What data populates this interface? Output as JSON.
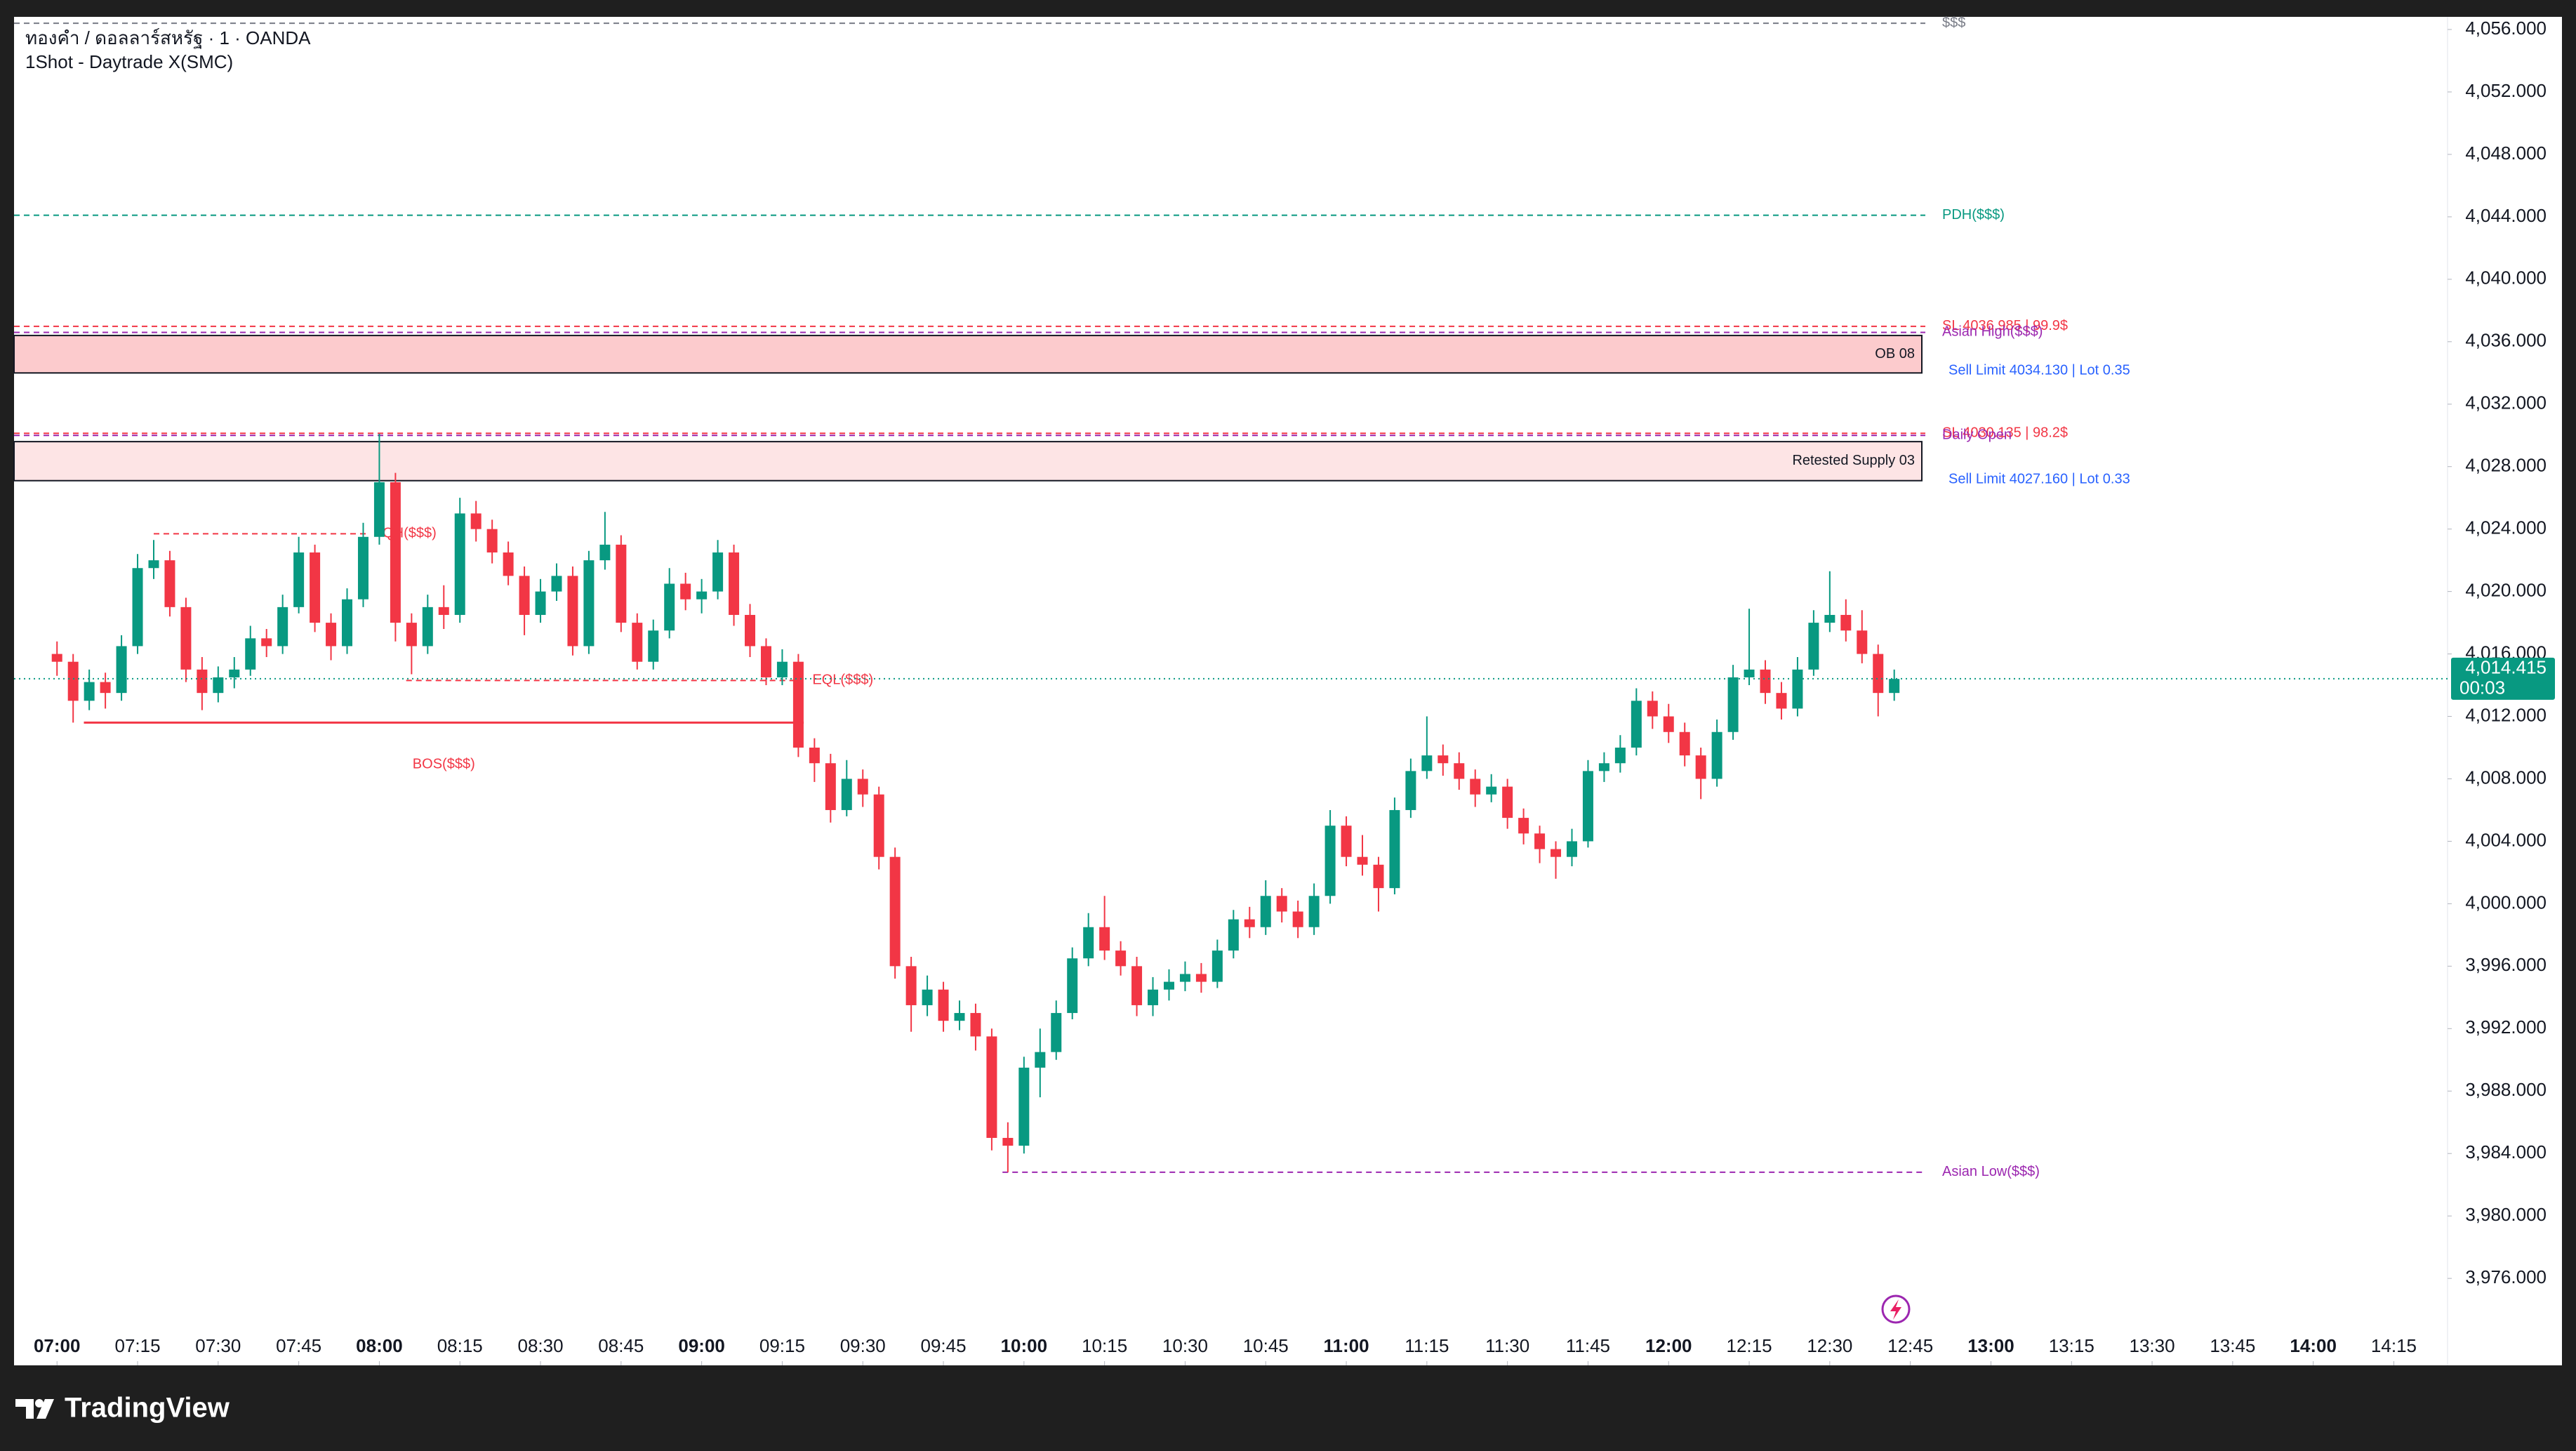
{
  "header": {
    "symbol": "ทองคำ / ดอลลาร์สหรัฐ · 1 · OANDA",
    "indicator": "1Shot - Daytrade X(SMC)"
  },
  "brand": "TradingView",
  "chart_data": {
    "type": "candlestick",
    "up_color": "#089981",
    "down_color": "#f23645",
    "x": [
      "07:00",
      "07:03",
      "07:06",
      "07:09",
      "07:12",
      "07:15",
      "07:18",
      "07:21",
      "07:24",
      "07:27",
      "07:30",
      "07:33",
      "07:36",
      "07:39",
      "07:42",
      "07:45",
      "07:48",
      "07:51",
      "07:54",
      "07:57",
      "08:00",
      "08:03",
      "08:06",
      "08:09",
      "08:12",
      "08:15",
      "08:18",
      "08:21",
      "08:24",
      "08:27",
      "08:30",
      "08:33",
      "08:36",
      "08:39",
      "08:42",
      "08:45",
      "08:48",
      "08:51",
      "08:54",
      "08:57",
      "09:00",
      "09:03",
      "09:06",
      "09:09",
      "09:12",
      "09:15",
      "09:18",
      "09:21",
      "09:24",
      "09:27",
      "09:30",
      "09:33",
      "09:36",
      "09:39",
      "09:42",
      "09:45",
      "09:48",
      "09:51",
      "09:54",
      "09:57",
      "10:00",
      "10:03",
      "10:06",
      "10:09",
      "10:12",
      "10:15",
      "10:18",
      "10:21",
      "10:24",
      "10:27",
      "10:30",
      "10:33",
      "10:36",
      "10:39",
      "10:42",
      "10:45",
      "10:48",
      "10:51",
      "10:54",
      "10:57",
      "11:00",
      "11:03",
      "11:06",
      "11:09",
      "11:12",
      "11:15",
      "11:18",
      "11:21",
      "11:24",
      "11:27",
      "11:30",
      "11:33",
      "11:36",
      "11:39",
      "11:42",
      "11:45",
      "11:48",
      "11:51",
      "11:54",
      "11:57",
      "12:00",
      "12:03",
      "12:06",
      "12:09",
      "12:12",
      "12:15",
      "12:18",
      "12:21",
      "12:24",
      "12:27",
      "12:30",
      "12:33",
      "12:36",
      "12:39",
      "12:42"
    ],
    "open": [
      4016.0,
      4015.5,
      4013.0,
      4014.2,
      4013.5,
      4016.5,
      4021.5,
      4022.0,
      4019.0,
      4015.0,
      4013.5,
      4014.5,
      4015.0,
      4017.0,
      4016.5,
      4019.0,
      4022.5,
      4018.0,
      4016.5,
      4019.5,
      4023.5,
      4027.0,
      4018.0,
      4016.5,
      4019.0,
      4018.5,
      4025.0,
      4024.0,
      4022.5,
      4021.0,
      4018.5,
      4020.0,
      4021.0,
      4016.5,
      4022.0,
      4023.0,
      4018.0,
      4015.5,
      4017.5,
      4020.5,
      4019.5,
      4020.0,
      4022.5,
      4018.5,
      4016.5,
      4014.5,
      4015.5,
      4010.0,
      4009.0,
      4006.0,
      4008.0,
      4007.0,
      4003.0,
      3996.0,
      3993.5,
      3994.5,
      3992.5,
      3993.0,
      3991.5,
      3985.0,
      3984.5,
      3989.5,
      3990.5,
      3993.0,
      3996.5,
      3998.5,
      3997.0,
      3996.0,
      3993.5,
      3994.5,
      3995.0,
      3995.5,
      3995.0,
      3997.0,
      3999.0,
      3998.5,
      4000.5,
      3999.5,
      3998.5,
      4000.5,
      4005.0,
      4003.0,
      4002.5,
      4001.0,
      4006.0,
      4008.5,
      4009.5,
      4009.0,
      4008.0,
      4007.0,
      4007.5,
      4005.5,
      4004.5,
      4003.5,
      4003.0,
      4004.0,
      4008.5,
      4009.0,
      4010.0,
      4013.0,
      4012.0,
      4011.0,
      4009.5,
      4008.0,
      4011.0,
      4014.5,
      4015.0,
      4013.5,
      4012.5,
      4015.0,
      4018.0,
      4018.5,
      4017.5,
      4016.0,
      4013.5
    ],
    "high": [
      4016.8,
      4016.0,
      4015.0,
      4014.8,
      4017.2,
      4022.4,
      4023.3,
      4022.6,
      4019.6,
      4015.8,
      4015.2,
      4015.8,
      4017.8,
      4017.6,
      4019.8,
      4023.5,
      4023.0,
      4018.6,
      4020.2,
      4024.4,
      4030.1,
      4027.6,
      4018.6,
      4019.8,
      4020.4,
      4026.0,
      4025.8,
      4024.6,
      4023.2,
      4021.6,
      4020.8,
      4021.8,
      4021.6,
      4022.6,
      4025.1,
      4023.6,
      4018.6,
      4018.2,
      4021.5,
      4021.2,
      4020.8,
      4023.3,
      4023.0,
      4019.2,
      4017.0,
      4016.3,
      4016.0,
      4010.6,
      4009.6,
      4009.2,
      4008.6,
      4007.5,
      4003.6,
      3996.6,
      3995.4,
      3995.0,
      3993.8,
      3993.6,
      3992.0,
      3986.0,
      3990.2,
      3992.0,
      3993.8,
      3997.2,
      3999.4,
      4000.5,
      3997.6,
      3996.6,
      3995.3,
      3995.8,
      3996.3,
      3996.2,
      3997.7,
      3999.6,
      3999.8,
      4001.5,
      4001.0,
      4000.2,
      4001.3,
      4006.0,
      4005.6,
      4004.4,
      4003.0,
      4006.8,
      4009.3,
      4012.0,
      4010.2,
      4009.7,
      4008.6,
      4008.3,
      4008.0,
      4006.1,
      4005.0,
      4004.0,
      4004.8,
      4009.2,
      4009.7,
      4010.8,
      4013.8,
      4013.6,
      4012.8,
      4011.6,
      4010.0,
      4011.8,
      4015.3,
      4018.9,
      4015.6,
      4014.2,
      4015.8,
      4018.8,
      4021.3,
      4019.5,
      4018.8,
      4016.6,
      4015.0
    ],
    "low": [
      4014.6,
      4011.6,
      4012.4,
      4012.5,
      4013.0,
      4016.0,
      4020.8,
      4018.4,
      4014.2,
      4012.4,
      4012.9,
      4013.8,
      4014.6,
      4015.8,
      4016.0,
      4018.6,
      4017.4,
      4015.6,
      4016.0,
      4019.0,
      4023.0,
      4016.8,
      4014.7,
      4016.0,
      4017.6,
      4018.0,
      4023.2,
      4021.8,
      4020.4,
      4017.2,
      4018.0,
      4019.4,
      4015.9,
      4016.0,
      4021.4,
      4017.4,
      4015.0,
      4015.0,
      4017.0,
      4018.8,
      4018.6,
      4019.5,
      4017.8,
      4015.8,
      4014.0,
      4014.0,
      4009.4,
      4007.8,
      4005.2,
      4005.6,
      4006.2,
      4002.2,
      3995.2,
      3991.8,
      3992.8,
      3991.8,
      3991.9,
      3990.6,
      3984.2,
      3982.8,
      3984.0,
      3987.6,
      3990.0,
      3992.6,
      3996.0,
      3996.4,
      3995.4,
      3992.8,
      3992.8,
      3993.8,
      3994.4,
      3994.3,
      3994.6,
      3996.5,
      3997.8,
      3998.0,
      3998.8,
      3997.8,
      3998.0,
      4000.0,
      4002.4,
      4001.8,
      3999.5,
      4000.6,
      4005.5,
      4008.0,
      4008.2,
      4007.3,
      4006.2,
      4006.5,
      4004.8,
      4003.8,
      4002.6,
      4001.6,
      4002.4,
      4003.6,
      4007.8,
      4008.4,
      4009.5,
      4011.2,
      4010.3,
      4008.8,
      4006.7,
      4007.5,
      4010.5,
      4014.0,
      4012.8,
      4011.8,
      4012.0,
      4014.6,
      4017.4,
      4016.8,
      4015.4,
      4012.0,
      4013.0
    ],
    "close": [
      4015.5,
      4013.0,
      4014.2,
      4013.5,
      4016.5,
      4021.5,
      4022.0,
      4019.0,
      4015.0,
      4013.5,
      4014.5,
      4015.0,
      4017.0,
      4016.5,
      4019.0,
      4022.5,
      4018.0,
      4016.5,
      4019.5,
      4023.5,
      4027.0,
      4018.0,
      4016.5,
      4019.0,
      4018.5,
      4025.0,
      4024.0,
      4022.5,
      4021.0,
      4018.5,
      4020.0,
      4021.0,
      4016.5,
      4022.0,
      4023.0,
      4018.0,
      4015.5,
      4017.5,
      4020.5,
      4019.5,
      4020.0,
      4022.5,
      4018.5,
      4016.5,
      4014.5,
      4015.5,
      4010.0,
      4009.0,
      4006.0,
      4008.0,
      4007.0,
      4003.0,
      3996.0,
      3993.5,
      3994.5,
      3992.5,
      3993.0,
      3991.5,
      3985.0,
      3984.5,
      3989.5,
      3990.5,
      3993.0,
      3996.5,
      3998.5,
      3997.0,
      3996.0,
      3993.5,
      3994.5,
      3995.0,
      3995.5,
      3995.0,
      3997.0,
      3999.0,
      3998.5,
      4000.5,
      3999.5,
      3998.5,
      4000.5,
      4005.0,
      4003.0,
      4002.5,
      4001.0,
      4006.0,
      4008.5,
      4009.5,
      4009.0,
      4008.0,
      4007.0,
      4007.5,
      4005.5,
      4004.5,
      4003.5,
      4003.0,
      4004.0,
      4008.5,
      4009.0,
      4010.0,
      4013.0,
      4012.0,
      4011.0,
      4009.5,
      4008.0,
      4011.0,
      4014.5,
      4015.0,
      4013.5,
      4012.5,
      4015.0,
      4018.0,
      4018.5,
      4017.5,
      4016.0,
      4013.5,
      4014.4
    ],
    "xlim": [
      "06:52",
      "14:25"
    ],
    "xticks": [
      "07:00",
      "07:15",
      "07:30",
      "07:45",
      "08:00",
      "08:15",
      "08:30",
      "08:45",
      "09:00",
      "09:15",
      "09:30",
      "09:45",
      "10:00",
      "10:15",
      "10:30",
      "10:45",
      "11:00",
      "11:15",
      "11:30",
      "11:45",
      "12:00",
      "12:15",
      "12:30",
      "12:45",
      "13:00",
      "13:15",
      "13:30",
      "13:45",
      "14:00",
      "14:15"
    ],
    "ylim": [
      3970.43,
      4056.81
    ],
    "yticks": [
      {
        "value": 4056,
        "label": "4,056.000"
      },
      {
        "value": 4052,
        "label": "4,052.000"
      },
      {
        "value": 4048,
        "label": "4,048.000"
      },
      {
        "value": 4044,
        "label": "4,044.000"
      },
      {
        "value": 4040,
        "label": "4,040.000"
      },
      {
        "value": 4036,
        "label": "4,036.000"
      },
      {
        "value": 4032,
        "label": "4,032.000"
      },
      {
        "value": 4028,
        "label": "4,028.000"
      },
      {
        "value": 4024,
        "label": "4,024.000"
      },
      {
        "value": 4020,
        "label": "4,020.000"
      },
      {
        "value": 4016,
        "label": "4,016.000"
      },
      {
        "value": 4012,
        "label": "4,012.000"
      },
      {
        "value": 4008,
        "label": "4,008.000"
      },
      {
        "value": 4004,
        "label": "4,004.000"
      },
      {
        "value": 4000,
        "label": "4,000.000"
      },
      {
        "value": 3996,
        "label": "3,996.000"
      },
      {
        "value": 3992,
        "label": "3,992.000"
      },
      {
        "value": 3988,
        "label": "3,988.000"
      },
      {
        "value": 3984,
        "label": "3,984.000"
      },
      {
        "value": 3980,
        "label": "3,980.000"
      },
      {
        "value": 3976,
        "label": "3,976.000"
      }
    ],
    "last_price": {
      "value": 4014.415,
      "label": "4,014.415"
    },
    "countdown": "00:03",
    "levels": [
      {
        "label": "$$$",
        "price": 4056.4,
        "color": "#787b86"
      },
      {
        "label": "PDH($$$)",
        "price": 4044.1,
        "color": "#089981"
      },
      {
        "label": "SL 4036.985 | 99.9$",
        "price": 4036.985,
        "color": "#f23645"
      },
      {
        "label": "Asian High($$$)",
        "price": 4036.6,
        "color": "#9c27b0"
      },
      {
        "label": "SL 4030.135 | 98.2$",
        "price": 4030.135,
        "color": "#f23645"
      },
      {
        "label": "Daily Open",
        "price": 4030.0,
        "color": "#9c27b0"
      },
      {
        "label": "Asian Low($$$)",
        "price": 3982.8,
        "color": "#9c27b0",
        "from": "09:56"
      }
    ],
    "zones": [
      {
        "label": "OB 08",
        "top": 4036.4,
        "bottom": 4034.0,
        "color": "#fccbcd"
      },
      {
        "label": "Retested Supply 03",
        "top": 4029.6,
        "bottom": 4027.1,
        "color": "#fde4e5"
      }
    ],
    "orders": [
      {
        "label": "Sell Limit 4034.130 | Lot 0.35",
        "price": 4034.13
      },
      {
        "label": "Sell Limit 4027.160 | Lot 0.33",
        "price": 4027.16
      }
    ],
    "structure": [
      {
        "label": "QH($$$)",
        "price": 4023.7,
        "from": "07:18",
        "to": "07:58",
        "dashed": true
      },
      {
        "label": "EQL($$$)",
        "price": 4014.3,
        "from": "08:05",
        "to": "09:18",
        "dashed": true
      },
      {
        "label": "BOS($$$)",
        "price": 4011.6,
        "from": "07:05",
        "to": "09:19",
        "dashed": false
      }
    ]
  }
}
